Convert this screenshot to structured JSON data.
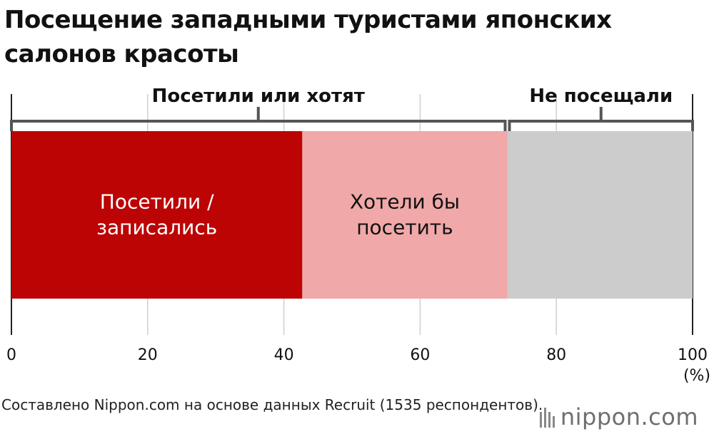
{
  "header": {
    "title": "Посещение западными туристами японских салонов красоты"
  },
  "chart_data": {
    "type": "bar",
    "orientation": "horizontal-stacked",
    "xlim": [
      0,
      100
    ],
    "x_ticks": [
      "0",
      "20",
      "40",
      "60",
      "80",
      "100"
    ],
    "unit_label": "(%)",
    "grid": true,
    "segments": [
      {
        "label_lines": [
          "Посетили /",
          "записались"
        ],
        "start": 0,
        "end": 42.7,
        "value": 42.7,
        "color": "#bc0404",
        "text_color": "#ffffff"
      },
      {
        "label_lines": [
          "Хотели бы",
          "посетить"
        ],
        "start": 42.7,
        "end": 72.8,
        "value": 30.1,
        "color": "#f0a8a8",
        "text_color": "#111111"
      },
      {
        "label_lines": [],
        "start": 72.8,
        "end": 100,
        "value": 27.2,
        "color": "#cccccc",
        "text_color": "#111111"
      }
    ],
    "groups": [
      {
        "label": "Посетили или хотят",
        "start": 0,
        "end": 72.8
      },
      {
        "label": "Не посещали",
        "start": 72.8,
        "end": 100
      }
    ]
  },
  "footer": {
    "source": "Составлено Nippon.com на основе данных Recruit (1535 респондентов).",
    "logo": "nippon.com"
  }
}
